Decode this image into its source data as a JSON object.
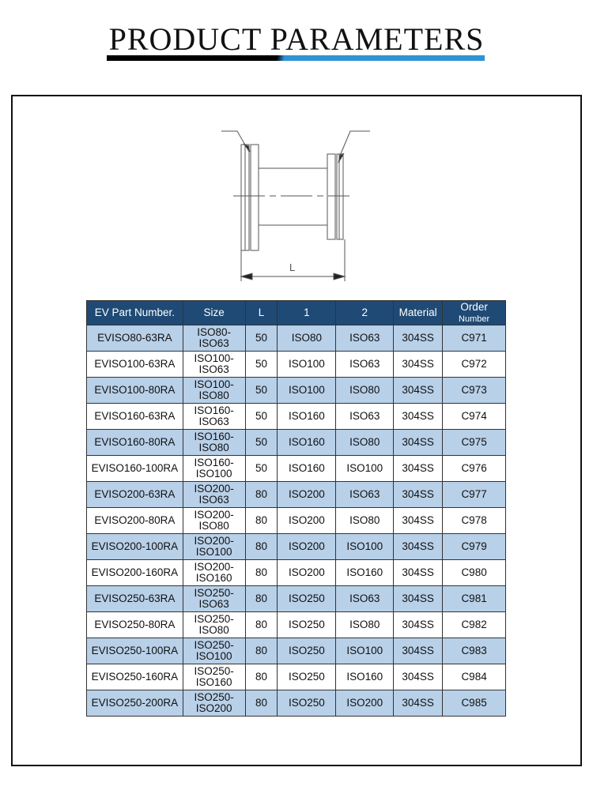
{
  "title": "PRODUCT PARAMETERS",
  "diagram": {
    "dimension_label": "L"
  },
  "colors": {
    "header": "#1f4a75",
    "stripe": "#b8d0e8",
    "accent": "#2f93d3"
  },
  "table": {
    "headers": [
      "EV Part Number.",
      "Size",
      "L",
      "1",
      "2",
      "Material",
      "Order",
      "Number"
    ],
    "rows": [
      [
        "EVISO80-63RA",
        "ISO80-",
        "ISO63",
        "50",
        "ISO80",
        "ISO63",
        "304SS",
        "C971"
      ],
      [
        "EVISO100-63RA",
        "ISO100-",
        "ISO63",
        "50",
        "ISO100",
        "ISO63",
        "304SS",
        "C972"
      ],
      [
        "EVISO100-80RA",
        "ISO100-",
        "ISO80",
        "50",
        "ISO100",
        "ISO80",
        "304SS",
        "C973"
      ],
      [
        "EVISO160-63RA",
        "ISO160-",
        "ISO63",
        "50",
        "ISO160",
        "ISO63",
        "304SS",
        "C974"
      ],
      [
        "EVISO160-80RA",
        "ISO160-",
        "ISO80",
        "50",
        "ISO160",
        "ISO80",
        "304SS",
        "C975"
      ],
      [
        "EVISO160-100RA",
        "ISO160-",
        "ISO100",
        "50",
        "ISO160",
        "ISO100",
        "304SS",
        "C976"
      ],
      [
        "EVISO200-63RA",
        "ISO200-",
        "ISO63",
        "80",
        "ISO200",
        "ISO63",
        "304SS",
        "C977"
      ],
      [
        "EVISO200-80RA",
        "ISO200-",
        "ISO80",
        "80",
        "ISO200",
        "ISO80",
        "304SS",
        "C978"
      ],
      [
        "EVISO200-100RA",
        "ISO200-",
        "ISO100",
        "80",
        "ISO200",
        "ISO100",
        "304SS",
        "C979"
      ],
      [
        "EVISO200-160RA",
        "ISO200-",
        "ISO160",
        "80",
        "ISO200",
        "ISO160",
        "304SS",
        "C980"
      ],
      [
        "EVISO250-63RA",
        "ISO250-",
        "ISO63",
        "80",
        "ISO250",
        "ISO63",
        "304SS",
        "C981"
      ],
      [
        "EVISO250-80RA",
        "ISO250-",
        "ISO80",
        "80",
        "ISO250",
        "ISO80",
        "304SS",
        "C982"
      ],
      [
        "EVISO250-100RA",
        "ISO250-",
        "ISO100",
        "80",
        "ISO250",
        "ISO100",
        "304SS",
        "C983"
      ],
      [
        "EVISO250-160RA",
        "ISO250-",
        "ISO160",
        "80",
        "ISO250",
        "ISO160",
        "304SS",
        "C984"
      ],
      [
        "EVISO250-200RA",
        "ISO250-",
        "ISO200",
        "80",
        "ISO250",
        "ISO200",
        "304SS",
        "C985"
      ]
    ]
  }
}
